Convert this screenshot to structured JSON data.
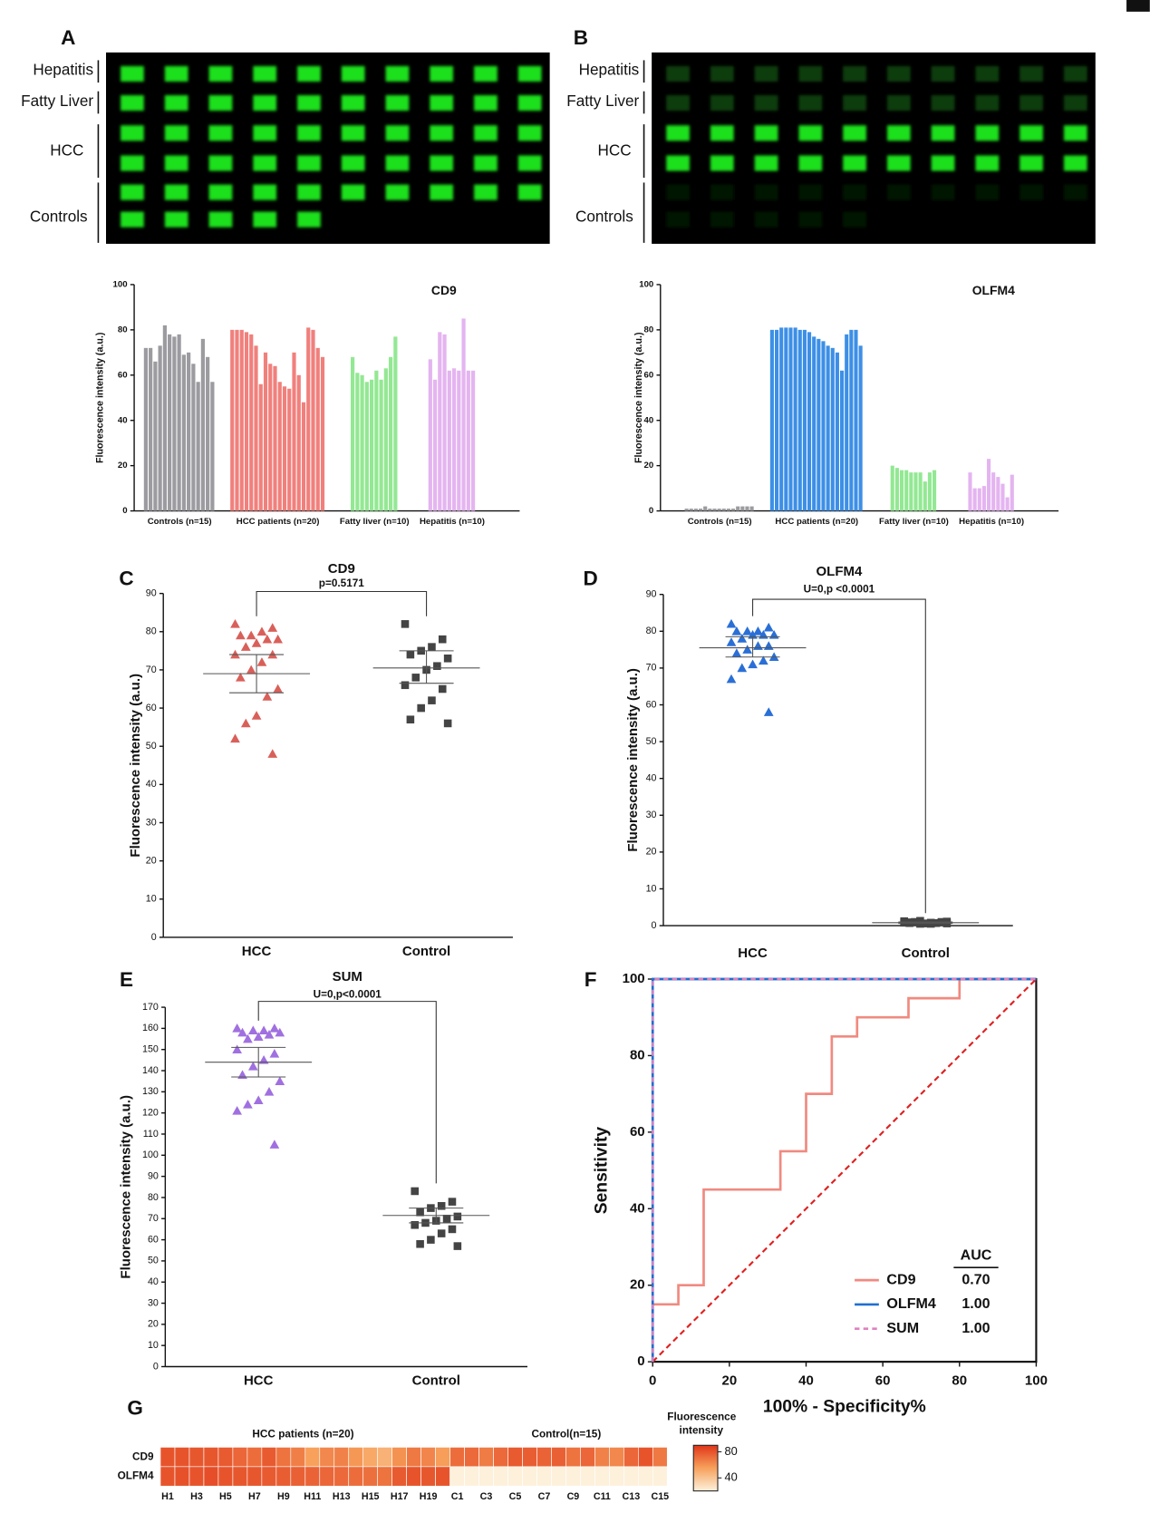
{
  "blots": [
    {
      "letter": "A",
      "rows": [
        "Hepatitis",
        "Fatty Liver",
        "HCC",
        "Controls"
      ]
    },
    {
      "letter": "B",
      "rows": [
        "Hepatitis",
        "Fatty Liver",
        "HCC",
        "Controls"
      ]
    }
  ],
  "chart_data": [
    {
      "type": "bar",
      "title": "CD9",
      "y_label": "Fluorescence intensity (a.u.)",
      "ylim": [
        0,
        100
      ],
      "yticks": [
        0,
        20,
        40,
        60,
        80,
        100
      ],
      "series": [
        {
          "name": "Controls (n=15)",
          "color": "#9b9ba0",
          "values": [
            72,
            72,
            66,
            73,
            82,
            78,
            77,
            78,
            69,
            70,
            65,
            57,
            76,
            68,
            57
          ]
        },
        {
          "name": "HCC patients (n=20)",
          "color": "#f0807c",
          "values": [
            80,
            80,
            80,
            79,
            78,
            73,
            56,
            70,
            65,
            64,
            57,
            55,
            54,
            70,
            60,
            48,
            81,
            80,
            72,
            68
          ]
        },
        {
          "name": "Fatty liver (n=10)",
          "color": "#93e893",
          "values": [
            68,
            61,
            60,
            57,
            58,
            62,
            58,
            63,
            68,
            77
          ]
        },
        {
          "name": "Hepatitis (n=10)",
          "color": "#e4b4f0",
          "values": [
            67,
            58,
            79,
            78,
            62,
            63,
            62,
            85,
            62,
            62
          ]
        }
      ]
    },
    {
      "type": "bar",
      "title": "OLFM4",
      "y_label": "Fluorescence intensity (a.u.)",
      "ylim": [
        0,
        100
      ],
      "yticks": [
        0,
        20,
        40,
        60,
        80,
        100
      ],
      "series": [
        {
          "name": "Controls (n=15)",
          "color": "#9b9ba0",
          "values": [
            1,
            1,
            1,
            1,
            2,
            1,
            1,
            1,
            1,
            1,
            1,
            2,
            2,
            2,
            2
          ]
        },
        {
          "name": "HCC patients (n=20)",
          "color": "#3d8fe6",
          "values": [
            80,
            80,
            81,
            81,
            81,
            81,
            80,
            80,
            79,
            77,
            76,
            75,
            73,
            72,
            70,
            62,
            78,
            80,
            80,
            73
          ]
        },
        {
          "name": "Fatty liver (n=10)",
          "color": "#93e893",
          "values": [
            20,
            19,
            18,
            18,
            17,
            17,
            17,
            13,
            17,
            18
          ]
        },
        {
          "name": "Hepatitis (n=10)",
          "color": "#e4b4f0",
          "values": [
            17,
            10,
            10,
            11,
            23,
            17,
            15,
            12,
            6,
            16
          ]
        }
      ]
    },
    {
      "type": "scatter",
      "panel": "C",
      "title": "CD9",
      "annotation": "p=0.5171",
      "y_label": "Fluorescence intensity (a.u.)",
      "categories": [
        "HCC",
        "Control"
      ],
      "ylim": [
        0,
        90
      ],
      "yticks": [
        0,
        10,
        20,
        30,
        40,
        50,
        60,
        70,
        80,
        90
      ],
      "series": [
        {
          "color": "#d9605a",
          "marker": "triangle",
          "mean": 69,
          "ci": [
            64,
            74
          ],
          "values": [
            82,
            81,
            80,
            79,
            79,
            78,
            78,
            77,
            76,
            74,
            74,
            72,
            70,
            68,
            65,
            63,
            58,
            56,
            52,
            48
          ]
        },
        {
          "color": "#444444",
          "marker": "square",
          "mean": 70.5,
          "ci": [
            66.5,
            75
          ],
          "values": [
            82,
            78,
            76,
            75,
            74,
            73,
            71,
            70,
            68,
            66,
            65,
            62,
            60,
            57,
            56
          ]
        }
      ]
    },
    {
      "type": "scatter",
      "panel": "D",
      "title": "OLFM4",
      "annotation": "U=0,p <0.0001",
      "y_label": "Fluorescence intensity (a.u.)",
      "categories": [
        "HCC",
        "Control"
      ],
      "ylim": [
        0,
        90
      ],
      "yticks": [
        0,
        10,
        20,
        30,
        40,
        50,
        60,
        70,
        80,
        90
      ],
      "series": [
        {
          "color": "#2a6fd6",
          "marker": "triangle",
          "mean": 75.5,
          "ci": [
            73,
            78.5
          ],
          "values": [
            82,
            81,
            80,
            80,
            80,
            79,
            79,
            79,
            78,
            77,
            76,
            76,
            75,
            74,
            73,
            72,
            71,
            70,
            67,
            58
          ]
        },
        {
          "color": "#444444",
          "marker": "square",
          "mean": 0.8,
          "ci": [
            0.6,
            1.0
          ],
          "values": [
            1.2,
            1.0,
            0.8,
            0.5,
            0.9,
            1.1,
            0.7,
            0.6,
            1.0,
            0.8,
            0.9,
            0.5,
            1.3,
            0.7,
            0.6
          ]
        }
      ]
    },
    {
      "type": "scatter",
      "panel": "E",
      "title": "SUM",
      "annotation": "U=0,p<0.0001",
      "y_label": "Fluorescence intensity (a.u.)",
      "categories": [
        "HCC",
        "Control"
      ],
      "ylim": [
        0,
        170
      ],
      "yticks": [
        0,
        10,
        20,
        30,
        40,
        50,
        60,
        70,
        80,
        90,
        100,
        110,
        120,
        130,
        140,
        150,
        160,
        170
      ],
      "series": [
        {
          "color": "#a070e0",
          "marker": "triangle",
          "mean": 144,
          "ci": [
            137,
            151
          ],
          "values": [
            160,
            160,
            159,
            159,
            158,
            158,
            157,
            156,
            155,
            150,
            148,
            145,
            142,
            138,
            135,
            130,
            126,
            124,
            121,
            105
          ]
        },
        {
          "color": "#444444",
          "marker": "square",
          "mean": 71.5,
          "ci": [
            68,
            75
          ],
          "values": [
            83,
            78,
            76,
            75,
            73,
            71,
            70,
            69,
            68,
            67,
            65,
            63,
            60,
            58,
            57
          ]
        }
      ]
    },
    {
      "type": "line",
      "panel": "F",
      "x_label": "100% - Specificity%",
      "y_label": "Sensitivity",
      "xlim": [
        0,
        100
      ],
      "ylim": [
        0,
        100
      ],
      "xticks": [
        0,
        20,
        40,
        60,
        80,
        100
      ],
      "yticks": [
        0,
        20,
        40,
        60,
        80,
        100
      ],
      "legend": "lower right",
      "legend_title": "AUC",
      "series": [
        {
          "name": "CD9",
          "color": "#f08a80",
          "dash": false,
          "auc": 0.7,
          "auc_label": "0.70",
          "x": [
            0,
            0,
            6.7,
            6.7,
            13.3,
            13.3,
            33.3,
            33.3,
            40,
            40,
            46.7,
            46.7,
            53.3,
            53.3,
            66.7,
            66.7,
            80,
            80,
            100
          ],
          "values": [
            0,
            15,
            15,
            20,
            20,
            45,
            45,
            55,
            55,
            70,
            70,
            85,
            85,
            90,
            90,
            95,
            95,
            100,
            100
          ]
        },
        {
          "name": "OLFM4",
          "color": "#1f6fd0",
          "dash": false,
          "auc": 1,
          "auc_label": "1.00",
          "x": [
            0,
            0,
            100
          ],
          "values": [
            0,
            100,
            100
          ]
        },
        {
          "name": "SUM",
          "color": "#e080c0",
          "dash": true,
          "auc": 1,
          "auc_label": "1.00",
          "x": [
            0,
            0,
            100
          ],
          "values": [
            0,
            100,
            100
          ]
        }
      ]
    },
    {
      "type": "heatmap",
      "panel": "G",
      "column_groups": [
        "HCC patients (n=20)",
        "Control(n=15)"
      ],
      "rows": [
        "CD9",
        "OLFM4"
      ],
      "columns": [
        "H1",
        null,
        "H3",
        null,
        "H5",
        null,
        "H7",
        null,
        "H9",
        null,
        "H11",
        null,
        "H13",
        null,
        "H15",
        null,
        "H17",
        null,
        "H19",
        null,
        "C1",
        null,
        "C3",
        null,
        "C5",
        null,
        "C7",
        null,
        "C9",
        null,
        "C11",
        null,
        "C13",
        null,
        "C15"
      ],
      "values": [
        [
          80,
          80,
          79,
          79,
          78,
          74,
          72,
          78,
          70,
          66,
          55,
          63,
          65,
          58,
          52,
          48,
          60,
          68,
          64,
          56,
          72,
          73,
          67,
          73,
          78,
          77,
          75,
          76,
          70,
          74,
          65,
          63,
          74,
          80,
          68
        ],
        [
          80,
          81,
          80,
          82,
          80,
          79,
          79,
          78,
          77,
          76,
          75,
          74,
          73,
          72,
          71,
          70,
          78,
          80,
          79,
          80,
          1.2,
          1.0,
          0.8,
          0.5,
          0.9,
          1.1,
          0.7,
          0.6,
          1.0,
          0.8,
          0.9,
          0.5,
          1.3,
          0.7,
          0.6
        ]
      ],
      "colorbar_title": "Fluorescence intensity",
      "clim": [
        20,
        90
      ],
      "cticks": [
        40,
        80
      ],
      "colormap": [
        "#fdf1dc",
        "#f7a15c",
        "#e03519"
      ]
    }
  ]
}
